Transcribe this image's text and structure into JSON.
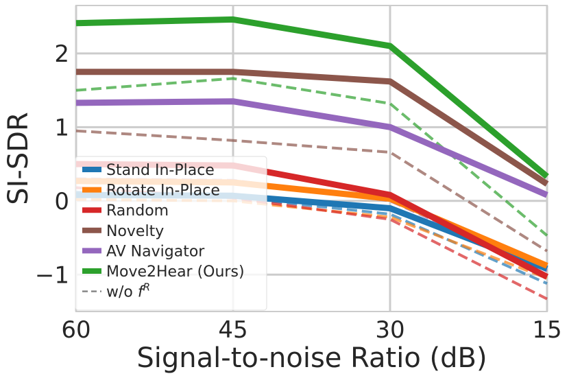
{
  "chart_data": {
    "type": "line",
    "title": "",
    "xlabel": "Signal-to-noise Ratio (dB)",
    "ylabel": "SI-SDR",
    "categories": [
      "60",
      "45",
      "30",
      "15"
    ],
    "xlim": [
      60,
      15
    ],
    "ylim": [
      -1.5,
      2.65
    ],
    "yticks": [
      {
        "value": -1,
        "label": "−1"
      },
      {
        "value": 0,
        "label": "0"
      },
      {
        "value": 1,
        "label": "1"
      },
      {
        "value": 2,
        "label": "2"
      }
    ],
    "grid": true,
    "legend_position": "lower-left",
    "series": [
      {
        "name": "Stand In-Place",
        "color": "#1f77b4",
        "solid": [
          0.08,
          0.07,
          -0.1,
          -0.92
        ],
        "dashed": [
          0.12,
          0.05,
          -0.18,
          -1.12
        ]
      },
      {
        "name": "Rotate In-Place",
        "color": "#ff7f0e",
        "solid": [
          0.27,
          0.25,
          0.03,
          -0.88
        ],
        "dashed": [
          0.02,
          0.0,
          -0.22,
          -1.05
        ]
      },
      {
        "name": "Random",
        "color": "#d62728",
        "solid": [
          0.5,
          0.48,
          0.08,
          -1.03
        ],
        "dashed": [
          0.18,
          0.04,
          -0.25,
          -1.33
        ]
      },
      {
        "name": "Novelty",
        "color": "#8c564b",
        "solid": [
          1.75,
          1.75,
          1.62,
          0.23
        ],
        "dashed": [
          0.95,
          0.82,
          0.66,
          -0.68
        ]
      },
      {
        "name": "AV Navigator",
        "color": "#9467bd",
        "solid": [
          1.33,
          1.35,
          1.0,
          0.08
        ],
        "dashed": [
          0.3,
          0.28,
          0.0,
          -0.95
        ]
      },
      {
        "name": "Move2Hear (Ours)",
        "color": "#2ca02c",
        "solid": [
          2.41,
          2.46,
          2.1,
          0.33
        ],
        "dashed": [
          1.5,
          1.66,
          1.32,
          -0.47
        ]
      }
    ],
    "legend_extra": {
      "prefix": "w/o ",
      "symbol": "f",
      "superscript": "R"
    }
  }
}
